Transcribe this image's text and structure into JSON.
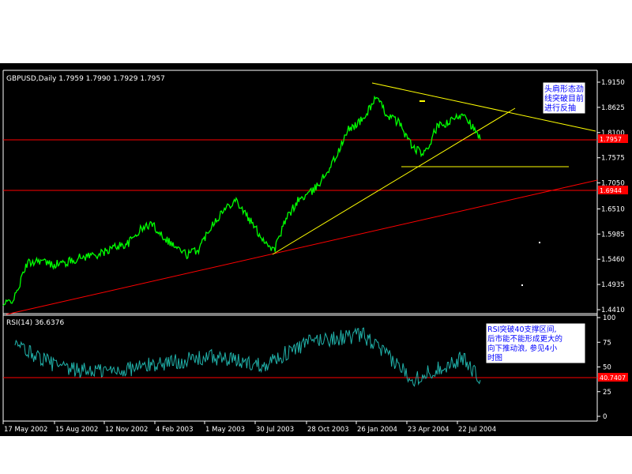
{
  "colors": {
    "page_bg": "#ffffff",
    "chart_bg": "#000000",
    "frame": "#ffffff",
    "price": "#00ff00",
    "rsi": "#20b2aa",
    "trendline_yellow": "#ffff00",
    "trendline_red": "#ff0000",
    "badge_red": "#ff0000",
    "note_bg": "#ffffff",
    "note_text": "#0000ff"
  },
  "main_panel": {
    "header": "GBPUSD,Daily  1.7959 1.7990 1.7929 1.7957",
    "y_ticks": [
      "1.9150",
      "1.8625",
      "1.8100",
      "1.7575",
      "1.7050",
      "1.6510",
      "1.5985",
      "1.5460",
      "1.4935",
      "1.4410"
    ],
    "price_badge": "1.7957",
    "level_badge": "1.6944",
    "annotation": [
      "头肩形态劲",
      "线突破目前",
      "进行反抽"
    ]
  },
  "rsi_panel": {
    "header": "RSI(14)  36.6376",
    "y_ticks": [
      "100",
      "75",
      "50",
      "25",
      "0"
    ],
    "level_badge": "40.7407",
    "annotation": [
      "RSI突破40支撑区间,",
      "后市能不能形成更大的",
      "向下推动浪, 参见4小",
      "时图"
    ]
  },
  "x_axis": {
    "labels": [
      "17 May 2002",
      "15 Aug 2002",
      "12 Nov 2002",
      "4 Feb 2003",
      "1 May 2003",
      "30 Jul 2003",
      "28 Oct 2003",
      "26 Jan 2004",
      "23 Apr 2004",
      "22 Jul 2004"
    ]
  },
  "chart_data": [
    {
      "type": "line",
      "title": "GBPUSD,Daily",
      "series": [
        {
          "name": "GBPUSD",
          "x": [
            "2002-04-26",
            "2002-05-17",
            "2002-06-07",
            "2002-06-28",
            "2002-07-19",
            "2002-08-15",
            "2002-09-05",
            "2002-09-26",
            "2002-10-17",
            "2002-11-12",
            "2002-12-03",
            "2002-12-24",
            "2003-01-14",
            "2003-02-04",
            "2003-02-25",
            "2003-03-18",
            "2003-04-08",
            "2003-05-01",
            "2003-05-22",
            "2003-06-12",
            "2003-07-03",
            "2003-07-30",
            "2003-08-20",
            "2003-09-10",
            "2003-10-01",
            "2003-10-28",
            "2003-11-18",
            "2003-12-09",
            "2003-12-30",
            "2004-01-26",
            "2004-02-16",
            "2004-03-08",
            "2004-03-29",
            "2004-04-23",
            "2004-05-14",
            "2004-06-04",
            "2004-06-25",
            "2004-07-22",
            "2004-08-05",
            "2004-08-20"
          ],
          "values": [
            1.4491,
            1.4668,
            1.5365,
            1.5449,
            1.5353,
            1.5385,
            1.5478,
            1.5541,
            1.5574,
            1.573,
            1.578,
            1.6058,
            1.6206,
            1.5944,
            1.5727,
            1.5555,
            1.5672,
            1.6183,
            1.6469,
            1.6721,
            1.6352,
            1.5898,
            1.5644,
            1.6286,
            1.6682,
            1.6878,
            1.7211,
            1.7624,
            1.816,
            1.8385,
            1.8836,
            1.8469,
            1.8301,
            1.7774,
            1.7645,
            1.8215,
            1.8296,
            1.8529,
            1.8229,
            1.7957
          ]
        }
      ],
      "ylim": [
        1.441,
        1.915
      ],
      "grid": false,
      "legend": "none"
    },
    {
      "type": "line",
      "title": "RSI(14)",
      "series": [
        {
          "name": "RSI(14)",
          "x": [
            "2002-05-17",
            "2002-08-15",
            "2002-11-12",
            "2003-02-04",
            "2003-05-01",
            "2003-07-30",
            "2003-10-28",
            "2004-01-26",
            "2004-04-23",
            "2004-07-22",
            "2004-08-20"
          ],
          "values": [
            72,
            47,
            46,
            54,
            60,
            52,
            77,
            82,
            38,
            59,
            36.6376
          ]
        }
      ],
      "ylim": [
        0,
        100
      ],
      "grid": false,
      "legend": "none"
    }
  ]
}
